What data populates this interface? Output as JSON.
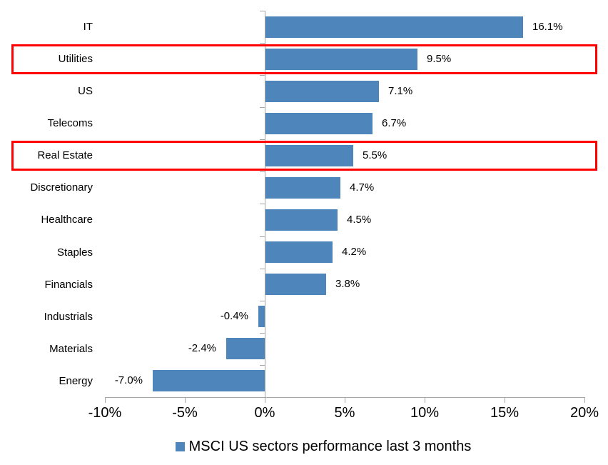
{
  "chart_data": {
    "type": "bar",
    "orientation": "horizontal",
    "title": "",
    "categories": [
      "IT",
      "Utilities",
      "US",
      "Telecoms",
      "Real Estate",
      "Discretionary",
      "Healthcare",
      "Staples",
      "Financials",
      "Industrials",
      "Materials",
      "Energy"
    ],
    "values": [
      16.1,
      9.5,
      7.1,
      6.7,
      5.5,
      4.7,
      4.5,
      4.2,
      3.8,
      -0.4,
      -2.4,
      -7.0
    ],
    "value_labels": [
      "16.1%",
      "9.5%",
      "7.1%",
      "6.7%",
      "5.5%",
      "4.7%",
      "4.5%",
      "4.2%",
      "3.8%",
      "-0.4%",
      "-2.4%",
      "-7.0%"
    ],
    "highlighted_categories": [
      "Utilities",
      "Real Estate"
    ],
    "x_tick_values": [
      -10,
      -5,
      0,
      5,
      10,
      15,
      20
    ],
    "x_tick_labels": [
      "-10%",
      "-5%",
      "0%",
      "5%",
      "10%",
      "15%",
      "20%"
    ],
    "xlim": [
      -10,
      20
    ],
    "grid": false,
    "legend_position": "bottom",
    "legend": "MSCI US sectors performance last 3 months",
    "colors": {
      "bar": "#4e86bc",
      "highlight_border": "#ff0000",
      "axis": "#a6a6a6",
      "text": "#000000",
      "background": "#ffffff"
    }
  }
}
